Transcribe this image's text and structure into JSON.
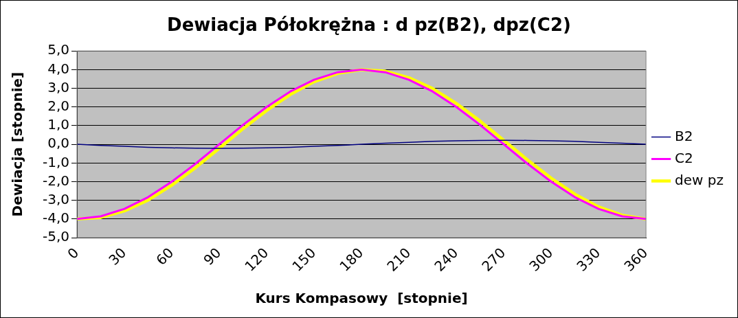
{
  "chart_data": {
    "type": "line",
    "title": "Dewiacja Półokrężna : d pz(B2), dpz(C2)",
    "xlabel": "Kurs Kompasowy  [stopnie]",
    "ylabel": "Dewiacja [stopnie]",
    "x": [
      0,
      15,
      30,
      45,
      60,
      75,
      90,
      105,
      120,
      135,
      150,
      165,
      180,
      195,
      210,
      225,
      240,
      255,
      270,
      285,
      300,
      315,
      330,
      345,
      360
    ],
    "series": [
      {
        "name": "B2",
        "color": "#000080",
        "values": [
          0,
          -0.06,
          -0.11,
          -0.16,
          -0.19,
          -0.21,
          -0.22,
          -0.21,
          -0.19,
          -0.16,
          -0.11,
          -0.06,
          0,
          0.06,
          0.11,
          0.16,
          0.19,
          0.21,
          0.22,
          0.21,
          0.19,
          0.16,
          0.11,
          0.06,
          0
        ]
      },
      {
        "name": "C2",
        "color": "#ff00ff",
        "values": [
          -4,
          -3.86,
          -3.46,
          -2.83,
          -2,
          -1.04,
          0,
          1.04,
          2,
          2.83,
          3.46,
          3.86,
          4,
          3.86,
          3.46,
          2.83,
          2,
          1.04,
          0,
          -1.04,
          -2,
          -2.83,
          -3.46,
          -3.86,
          -4
        ]
      },
      {
        "name": "dew pz",
        "color": "#ffff00",
        "values": [
          -4,
          -3.92,
          -3.57,
          -2.99,
          -2.19,
          -1.25,
          -0.22,
          0.83,
          1.81,
          2.67,
          3.35,
          3.8,
          4,
          3.92,
          3.57,
          2.99,
          2.19,
          1.25,
          0.22,
          -0.83,
          -1.81,
          -2.67,
          -3.35,
          -3.8,
          -4
        ]
      }
    ],
    "xlim": [
      0,
      360
    ],
    "xticks": [
      0,
      30,
      60,
      90,
      120,
      150,
      180,
      210,
      240,
      270,
      300,
      330,
      360
    ],
    "ylim": [
      -5,
      5
    ],
    "yticks": [
      {
        "value": -5,
        "label": "-5,0"
      },
      {
        "value": -4,
        "label": "-4,0"
      },
      {
        "value": -3,
        "label": "-3,0"
      },
      {
        "value": -2,
        "label": "-2,0"
      },
      {
        "value": -1,
        "label": "-1,0"
      },
      {
        "value": 0,
        "label": "0,0"
      },
      {
        "value": 1,
        "label": "1,0"
      },
      {
        "value": 2,
        "label": "2,0"
      },
      {
        "value": 3,
        "label": "3,0"
      },
      {
        "value": 4,
        "label": "4,0"
      },
      {
        "value": 5,
        "label": "5,0"
      }
    ],
    "grid": "y",
    "legend": "right",
    "marker": "none",
    "line_style": "solid"
  }
}
